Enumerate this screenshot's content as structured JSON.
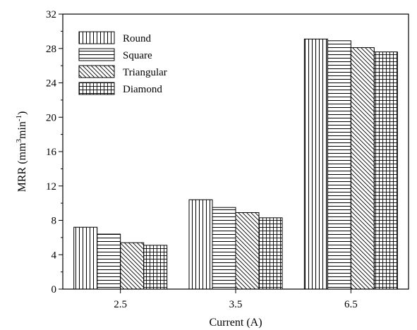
{
  "chart_data": {
    "type": "bar",
    "xlabel": "Current (A)",
    "ylabel_main": "MRR (mm",
    "ylabel_sup1": "3",
    "ylabel_mid": "min",
    "ylabel_sup2": "-1",
    "ylabel_end": ")",
    "categories": [
      "2.5",
      "3.5",
      "6.5"
    ],
    "series": [
      {
        "name": "Round",
        "pattern": "vertical",
        "values": [
          7.2,
          10.4,
          29.1
        ]
      },
      {
        "name": "Square",
        "pattern": "horizontal",
        "values": [
          6.4,
          9.5,
          28.9
        ]
      },
      {
        "name": "Triangular",
        "pattern": "diagonal",
        "values": [
          5.4,
          8.9,
          28.1
        ]
      },
      {
        "name": "Diamond",
        "pattern": "grid",
        "values": [
          5.1,
          8.3,
          27.6
        ]
      }
    ],
    "ylim": [
      0,
      32
    ],
    "yticks": [
      "0",
      "4",
      "8",
      "12",
      "16",
      "20",
      "24",
      "28",
      "32"
    ],
    "grid": false,
    "legend_position": "top-left"
  }
}
